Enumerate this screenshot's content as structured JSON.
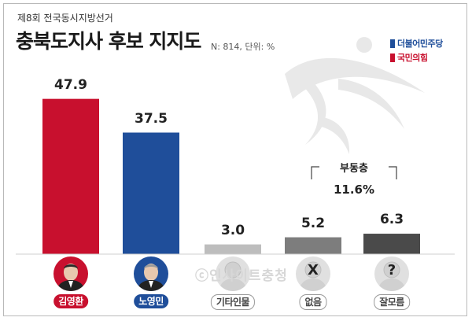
{
  "header": {
    "subtitle": "제8회 전국동시지방선거",
    "title": "충북도지사 후보 지지도",
    "meta": "N: 814, 단위: %"
  },
  "legend": [
    {
      "label": "더불어민주당",
      "color": "#1f4e9a"
    },
    {
      "label": "국민의힘",
      "color": "#c8102e"
    }
  ],
  "floating_voters": {
    "label": "부동층",
    "value": "11.6%"
  },
  "watermark": "ⓒ인사이트충청",
  "chart_data": {
    "type": "bar",
    "categories": [
      "김영환",
      "노영민",
      "기타인물",
      "없음",
      "잘모름"
    ],
    "values": [
      47.9,
      37.5,
      3.0,
      5.2,
      6.3
    ],
    "value_labels": [
      "47.9",
      "37.5",
      "3.0",
      "5.2",
      "6.3"
    ],
    "colors": [
      "#c8102e",
      "#1f4e9a",
      "#bdbdbd",
      "#7d7d7d",
      "#4a4a4a"
    ],
    "chip_colors": [
      "#c8102e",
      "#1f4e9a",
      "#ffffff",
      "#ffffff",
      "#ffffff"
    ],
    "chip_text_colors": [
      "#ffffff",
      "#ffffff",
      "#444444",
      "#444444",
      "#444444"
    ],
    "icons": [
      "candidate-photo",
      "candidate-photo",
      "person-icon",
      "x-icon",
      "question-icon"
    ],
    "icon_glyphs": [
      "",
      "",
      "",
      "X",
      "?"
    ],
    "ylim": [
      0,
      50
    ],
    "title": "",
    "xlabel": "",
    "ylabel": ""
  }
}
